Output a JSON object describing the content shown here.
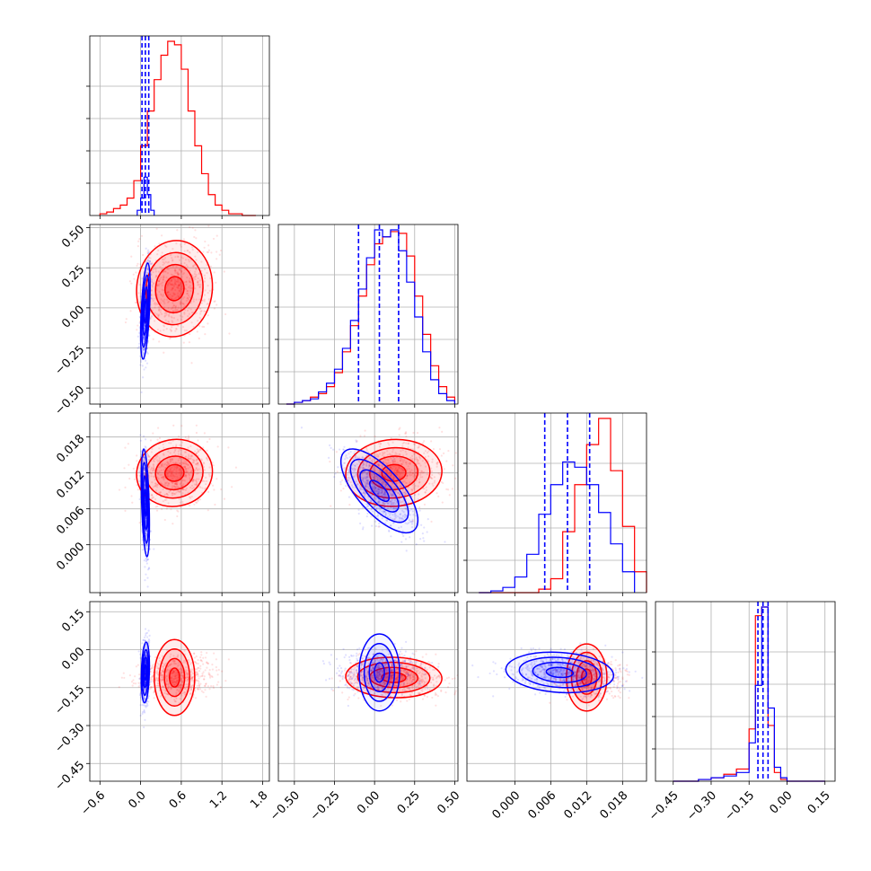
{
  "chart_data": {
    "type": "corner",
    "grid": true,
    "colors": {
      "series_a": "#ff0000",
      "series_b": "#0000ff"
    },
    "parameters": [
      {
        "range": [
          -0.75,
          1.9
        ],
        "ticks": [
          "−0.6",
          "0.0",
          "0.6",
          "1.2",
          "1.8"
        ],
        "tick_values": [
          -0.6,
          0.0,
          0.6,
          1.2,
          1.8
        ]
      },
      {
        "range": [
          -0.6,
          0.52
        ],
        "ticks": [
          "−0.50",
          "−0.25",
          "0.00",
          "0.25",
          "0.50"
        ],
        "tick_values": [
          -0.5,
          -0.25,
          0.0,
          0.25,
          0.5
        ]
      },
      {
        "range": [
          -0.008,
          0.022
        ],
        "ticks": [
          "0.000",
          "0.006",
          "0.012",
          "0.018"
        ],
        "tick_values": [
          0.0,
          0.006,
          0.012,
          0.018
        ]
      },
      {
        "range": [
          -0.52,
          0.19
        ],
        "ticks": [
          "−0.45",
          "−0.30",
          "−0.15",
          "0.00",
          "0.15"
        ],
        "tick_values": [
          -0.45,
          -0.3,
          -0.15,
          0.0,
          0.15
        ]
      }
    ],
    "quantiles_series_b": [
      [
        0.02,
        0.07,
        0.12
      ],
      [
        -0.1,
        0.03,
        0.15
      ],
      [
        0.005,
        0.0088,
        0.0125
      ],
      [
        -0.115,
        -0.095,
        -0.075
      ]
    ],
    "marginals": [
      {
        "series_a": {
          "edges": [
            -0.6,
            -0.5,
            -0.4,
            -0.3,
            -0.2,
            -0.1,
            0.0,
            0.1,
            0.2,
            0.3,
            0.4,
            0.5,
            0.6,
            0.7,
            0.8,
            0.9,
            1.0,
            1.1,
            1.2,
            1.3,
            1.4,
            1.5,
            1.6,
            1.7
          ],
          "counts": [
            0.01,
            0.02,
            0.04,
            0.06,
            0.1,
            0.2,
            0.4,
            0.6,
            0.78,
            0.92,
            1.0,
            0.98,
            0.84,
            0.6,
            0.4,
            0.24,
            0.12,
            0.06,
            0.03,
            0.01,
            0.01,
            0.0,
            0.0
          ]
        },
        "series_b": {
          "edges": [
            -0.05,
            0.0,
            0.05,
            0.1,
            0.15,
            0.2
          ],
          "counts": [
            0.03,
            0.1,
            0.22,
            0.12,
            0.03
          ]
        }
      },
      {
        "series_a": {
          "edges": [
            -0.55,
            -0.5,
            -0.45,
            -0.4,
            -0.35,
            -0.3,
            -0.25,
            -0.2,
            -0.15,
            -0.1,
            -0.05,
            0.0,
            0.05,
            0.1,
            0.15,
            0.2,
            0.25,
            0.3,
            0.35,
            0.4,
            0.45,
            0.5
          ],
          "counts": [
            0.0,
            0.01,
            0.02,
            0.04,
            0.06,
            0.1,
            0.18,
            0.3,
            0.45,
            0.62,
            0.8,
            0.92,
            0.96,
            0.99,
            0.98,
            0.85,
            0.62,
            0.4,
            0.22,
            0.1,
            0.04
          ]
        },
        "series_b": {
          "edges": [
            -0.55,
            -0.5,
            -0.45,
            -0.4,
            -0.35,
            -0.3,
            -0.25,
            -0.2,
            -0.15,
            -0.1,
            -0.05,
            0.0,
            0.05,
            0.1,
            0.15,
            0.2,
            0.25,
            0.3,
            0.35,
            0.4,
            0.45,
            0.5
          ],
          "counts": [
            0.0,
            0.01,
            0.02,
            0.03,
            0.07,
            0.12,
            0.2,
            0.32,
            0.48,
            0.66,
            0.84,
            1.0,
            0.96,
            1.0,
            0.88,
            0.7,
            0.5,
            0.3,
            0.14,
            0.06,
            0.02
          ]
        }
      },
      {
        "series_a": {
          "edges": [
            -0.006,
            -0.004,
            -0.002,
            0.0,
            0.002,
            0.004,
            0.006,
            0.008,
            0.01,
            0.012,
            0.014,
            0.016,
            0.018,
            0.02,
            0.022
          ],
          "counts": [
            0.0,
            0.0,
            0.0,
            0.0,
            0.0,
            0.02,
            0.08,
            0.35,
            0.62,
            0.85,
            1.0,
            0.7,
            0.38,
            0.12
          ]
        },
        "series_b": {
          "edges": [
            -0.006,
            -0.004,
            -0.002,
            0.0,
            0.002,
            0.004,
            0.006,
            0.008,
            0.01,
            0.012,
            0.014,
            0.016,
            0.018,
            0.02
          ],
          "counts": [
            0.0,
            0.01,
            0.03,
            0.09,
            0.22,
            0.45,
            0.62,
            0.75,
            0.72,
            0.62,
            0.46,
            0.28,
            0.12
          ]
        }
      },
      {
        "series_a": {
          "edges": [
            -0.45,
            -0.4,
            -0.35,
            -0.3,
            -0.25,
            -0.2,
            -0.15,
            -0.125,
            -0.1,
            -0.075,
            -0.05,
            -0.025,
            0.0,
            0.05,
            0.1,
            0.15
          ],
          "counts": [
            0.0,
            0.0,
            0.01,
            0.02,
            0.04,
            0.07,
            0.3,
            0.95,
            1.0,
            0.32,
            0.05,
            0.01,
            0.0,
            0.0,
            0.0
          ]
        },
        "series_b": {
          "edges": [
            -0.45,
            -0.4,
            -0.35,
            -0.3,
            -0.25,
            -0.2,
            -0.15,
            -0.125,
            -0.1,
            -0.075,
            -0.05,
            -0.025,
            0.0,
            0.05,
            0.1,
            0.15
          ],
          "counts": [
            0.0,
            0.0,
            0.01,
            0.02,
            0.03,
            0.05,
            0.22,
            0.55,
            1.0,
            0.42,
            0.08,
            0.02,
            0.0,
            0.0,
            0.0
          ]
        }
      }
    ],
    "joints": {
      "1_0": {
        "series_a": {
          "mean": [
            0.5,
            0.12
          ],
          "sd": [
            0.28,
            0.15
          ],
          "rho": 0.05
        },
        "series_b": {
          "mean": [
            0.07,
            -0.02
          ],
          "sd": [
            0.035,
            0.15
          ],
          "rho": 0.5
        }
      },
      "2_0": {
        "series_a": {
          "mean": [
            0.5,
            0.012
          ],
          "sd": [
            0.28,
            0.0028
          ],
          "rho": 0.05
        },
        "series_b": {
          "mean": [
            0.07,
            0.007
          ],
          "sd": [
            0.03,
            0.0045
          ],
          "rho": -0.4
        }
      },
      "3_0": {
        "series_a": {
          "mean": [
            0.5,
            -0.11
          ],
          "sd": [
            0.28,
            0.04
          ],
          "rho": 0.0
        },
        "series_b": {
          "mean": [
            0.07,
            -0.09
          ],
          "sd": [
            0.03,
            0.06
          ],
          "rho": 0.2
        }
      },
      "2_1": {
        "series_a": {
          "mean": [
            0.12,
            0.012
          ],
          "sd": [
            0.15,
            0.0028
          ],
          "rho": 0.05
        },
        "series_b": {
          "mean": [
            0.03,
            0.009
          ],
          "sd": [
            0.12,
            0.0035
          ],
          "rho": -0.7
        }
      },
      "3_1": {
        "series_a": {
          "mean": [
            0.12,
            -0.11
          ],
          "sd": [
            0.15,
            0.04
          ],
          "rho": -0.05
        },
        "series_b": {
          "mean": [
            0.03,
            -0.09
          ],
          "sd": [
            0.12,
            0.04
          ],
          "rho": 0.0
        }
      },
      "3_2": {
        "series_a": {
          "mean": [
            0.012,
            -0.11
          ],
          "sd": [
            0.0028,
            0.04
          ],
          "rho": 0.0
        },
        "series_b": {
          "mean": [
            0.0075,
            -0.09
          ],
          "sd": [
            0.0045,
            0.04
          ],
          "rho": -0.15
        }
      }
    }
  }
}
